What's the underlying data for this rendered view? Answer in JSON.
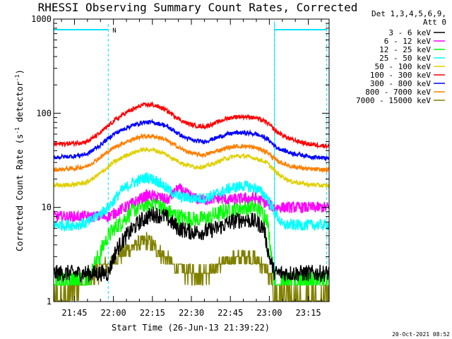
{
  "chart_data": {
    "type": "line",
    "title": "RHESSI Observing Summary Count Rates, Corrected",
    "xlabel": "Start Time (26-Jun-13 21:39:22)",
    "ylabel_main": "Corrected Count Rate (s",
    "ylabel_sup1": "-1",
    "ylabel_mid": " detector",
    "ylabel_sup2": "-1",
    "ylabel_end": ")",
    "y_scale": "log",
    "ylim": [
      1,
      1000
    ],
    "xlim_minutes": [
      -8,
      98
    ],
    "x_ticks": [
      {
        "m": 0,
        "label": "21:45"
      },
      {
        "m": 15,
        "label": "22:00"
      },
      {
        "m": 30,
        "label": "22:15"
      },
      {
        "m": 45,
        "label": "22:30"
      },
      {
        "m": 60,
        "label": "22:45"
      },
      {
        "m": 75,
        "label": "23:00"
      },
      {
        "m": 90,
        "label": "23:15"
      }
    ],
    "y_ticks": [
      {
        "v": 1,
        "label": "1"
      },
      {
        "v": 10,
        "label": "10"
      },
      {
        "v": 100,
        "label": "100"
      },
      {
        "v": 1000,
        "label": "1000"
      }
    ],
    "legend_header": [
      "Det 1,3,4,5,6,9,",
      "Att 0"
    ],
    "night_label": "N",
    "night_intervals_minutes": [
      [
        -8,
        13
      ],
      [
        77,
        97
      ]
    ],
    "data_gap_minutes": [
      13,
      77
    ],
    "series": [
      {
        "name": "3 - 6 keV",
        "color": "#000000",
        "points": [
          [
            13,
            2
          ],
          [
            16,
            3.5
          ],
          [
            20,
            5
          ],
          [
            25,
            7
          ],
          [
            30,
            8.5
          ],
          [
            35,
            8
          ],
          [
            40,
            6
          ],
          [
            45,
            5.5
          ],
          [
            50,
            5.5
          ],
          [
            55,
            6
          ],
          [
            60,
            7
          ],
          [
            65,
            7.5
          ],
          [
            70,
            7
          ],
          [
            73,
            6
          ],
          [
            74,
            4
          ],
          [
            75,
            3
          ],
          [
            77,
            2
          ]
        ]
      },
      {
        "name": "6 - 12 keV",
        "color": "#ff00ff",
        "points": [
          [
            13,
            8
          ],
          [
            18,
            9.5
          ],
          [
            22,
            11
          ],
          [
            28,
            13.5
          ],
          [
            32,
            13
          ],
          [
            36,
            12
          ],
          [
            40,
            16
          ],
          [
            43,
            14
          ],
          [
            46,
            12.5
          ],
          [
            50,
            12
          ],
          [
            55,
            12.5
          ],
          [
            60,
            12
          ],
          [
            65,
            12.5
          ],
          [
            70,
            12.5
          ],
          [
            74,
            11
          ],
          [
            77,
            10
          ]
        ]
      },
      {
        "name": "12 - 25 keV",
        "color": "#00ff00",
        "points": [
          [
            -8,
            1.7
          ],
          [
            -2,
            1.7
          ],
          [
            5,
            1.7
          ],
          [
            13,
            5
          ],
          [
            18,
            7
          ],
          [
            22,
            9
          ],
          [
            28,
            11
          ],
          [
            32,
            11.5
          ],
          [
            36,
            9
          ],
          [
            40,
            8
          ],
          [
            45,
            7.5
          ],
          [
            50,
            7.5
          ],
          [
            55,
            8.5
          ],
          [
            60,
            9.5
          ],
          [
            65,
            10
          ],
          [
            70,
            10
          ],
          [
            74,
            8
          ],
          [
            77,
            1.7
          ],
          [
            85,
            1.7
          ],
          [
            97,
            1.7
          ]
        ]
      },
      {
        "name": "25 - 50 keV",
        "color": "#00ffff",
        "points": [
          [
            -8,
            6.5
          ],
          [
            0,
            6.5
          ],
          [
            5,
            6.8
          ],
          [
            13,
            10
          ],
          [
            18,
            15
          ],
          [
            22,
            18
          ],
          [
            28,
            21
          ],
          [
            32,
            19
          ],
          [
            36,
            15.5
          ],
          [
            40,
            13
          ],
          [
            45,
            12.5
          ],
          [
            50,
            12.5
          ],
          [
            55,
            14
          ],
          [
            60,
            16
          ],
          [
            65,
            17
          ],
          [
            70,
            16
          ],
          [
            74,
            13
          ],
          [
            77,
            9
          ],
          [
            80,
            6.5
          ],
          [
            97,
            6.5
          ]
        ]
      },
      {
        "name": "50 - 100 keV",
        "color": "#e0d000",
        "points": [
          [
            -8,
            17
          ],
          [
            0,
            17.5
          ],
          [
            5,
            18.5
          ],
          [
            10,
            23
          ],
          [
            15,
            30
          ],
          [
            20,
            36
          ],
          [
            26,
            41
          ],
          [
            30,
            41
          ],
          [
            34,
            38
          ],
          [
            38,
            33
          ],
          [
            42,
            29
          ],
          [
            46,
            27
          ],
          [
            50,
            27
          ],
          [
            54,
            29.5
          ],
          [
            58,
            33
          ],
          [
            62,
            35
          ],
          [
            66,
            35
          ],
          [
            70,
            33
          ],
          [
            74,
            30
          ],
          [
            78,
            23
          ],
          [
            83,
            19
          ],
          [
            90,
            17.5
          ],
          [
            97,
            17
          ]
        ]
      },
      {
        "name": "100 - 300 keV",
        "color": "#ff0000",
        "points": [
          [
            -8,
            47
          ],
          [
            0,
            48
          ],
          [
            5,
            50
          ],
          [
            10,
            62
          ],
          [
            15,
            82
          ],
          [
            20,
            102
          ],
          [
            26,
            122
          ],
          [
            30,
            123
          ],
          [
            34,
            113
          ],
          [
            38,
            96
          ],
          [
            42,
            81
          ],
          [
            46,
            74
          ],
          [
            50,
            72
          ],
          [
            54,
            78
          ],
          [
            58,
            87
          ],
          [
            62,
            92
          ],
          [
            66,
            92
          ],
          [
            70,
            89
          ],
          [
            74,
            80
          ],
          [
            78,
            63
          ],
          [
            83,
            53
          ],
          [
            90,
            47
          ],
          [
            97,
            45
          ]
        ]
      },
      {
        "name": "300 - 800 keV",
        "color": "#0000ff",
        "points": [
          [
            -8,
            34
          ],
          [
            0,
            35
          ],
          [
            5,
            37
          ],
          [
            10,
            46
          ],
          [
            15,
            60
          ],
          [
            20,
            70
          ],
          [
            26,
            80
          ],
          [
            30,
            80
          ],
          [
            34,
            76
          ],
          [
            38,
            66
          ],
          [
            42,
            56
          ],
          [
            46,
            51
          ],
          [
            50,
            50
          ],
          [
            54,
            54
          ],
          [
            58,
            59
          ],
          [
            62,
            62
          ],
          [
            66,
            62
          ],
          [
            70,
            60
          ],
          [
            74,
            54
          ],
          [
            78,
            43
          ],
          [
            83,
            38
          ],
          [
            90,
            35
          ],
          [
            97,
            33
          ]
        ]
      },
      {
        "name": "800 - 7000 keV",
        "color": "#ff8000",
        "points": [
          [
            -8,
            25
          ],
          [
            0,
            26
          ],
          [
            5,
            27.5
          ],
          [
            10,
            34
          ],
          [
            15,
            43
          ],
          [
            20,
            50
          ],
          [
            26,
            57
          ],
          [
            30,
            57
          ],
          [
            34,
            54
          ],
          [
            38,
            47
          ],
          [
            42,
            40.5
          ],
          [
            46,
            37
          ],
          [
            50,
            36
          ],
          [
            54,
            39
          ],
          [
            58,
            42.5
          ],
          [
            62,
            44.5
          ],
          [
            66,
            44.5
          ],
          [
            70,
            43
          ],
          [
            74,
            39
          ],
          [
            78,
            31
          ],
          [
            83,
            27.5
          ],
          [
            90,
            25.5
          ],
          [
            97,
            25
          ]
        ]
      },
      {
        "name": "7000 - 15000 keV",
        "color": "#808000",
        "points": [
          [
            -8,
            1.1
          ],
          [
            -5,
            1.1
          ],
          [
            5,
            1.7
          ],
          [
            13,
            2.5
          ],
          [
            18,
            3.2
          ],
          [
            22,
            3.8
          ],
          [
            28,
            4.5
          ],
          [
            32,
            3.5
          ],
          [
            36,
            2.8
          ],
          [
            40,
            2.2
          ],
          [
            45,
            2
          ],
          [
            50,
            2
          ],
          [
            55,
            2.3
          ],
          [
            60,
            2.8
          ],
          [
            65,
            3
          ],
          [
            70,
            2.8
          ],
          [
            74,
            2.2
          ],
          [
            77,
            1.2
          ],
          [
            85,
            1.1
          ],
          [
            97,
            1.1
          ]
        ]
      }
    ]
  },
  "footer": {
    "timestamp": "20-Oct-2021 08:52"
  }
}
